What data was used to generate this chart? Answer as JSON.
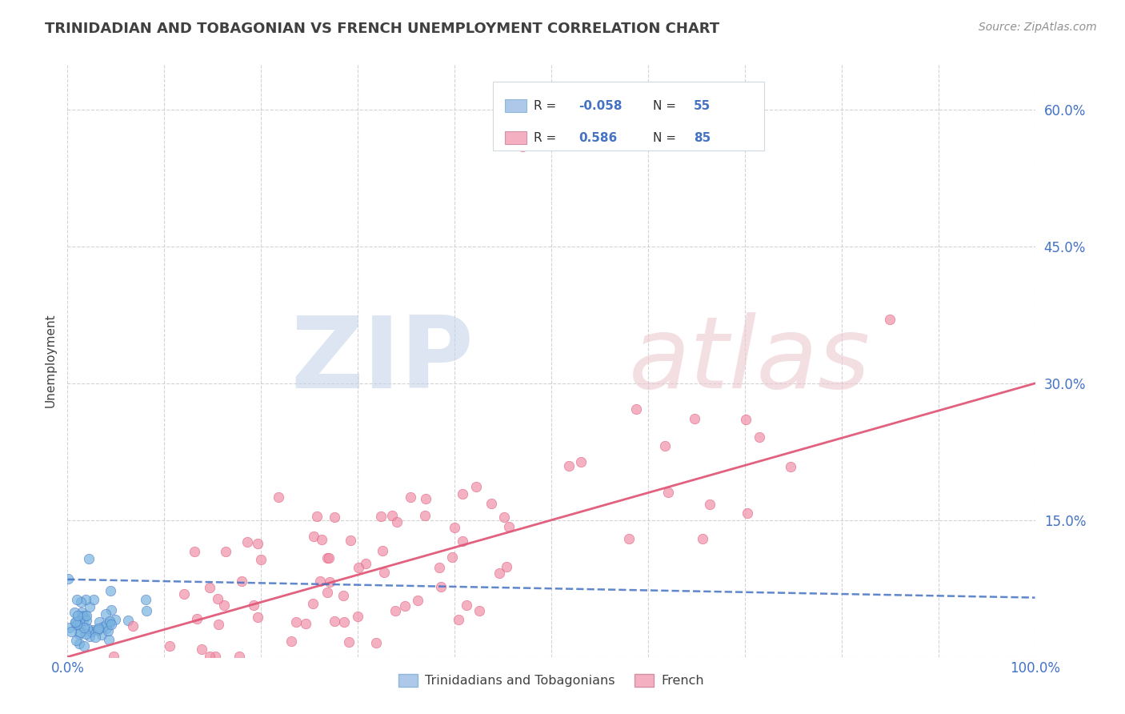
{
  "title": "TRINIDADIAN AND TOBAGONIAN VS FRENCH UNEMPLOYMENT CORRELATION CHART",
  "source": "Source: ZipAtlas.com",
  "ylabel": "Unemployment",
  "xlim": [
    0,
    1
  ],
  "ylim": [
    0,
    0.65
  ],
  "yticks": [
    0.0,
    0.15,
    0.3,
    0.45,
    0.6
  ],
  "ytick_labels": [
    "",
    "15.0%",
    "30.0%",
    "45.0%",
    "60.0%"
  ],
  "xtick_vals": [
    0.0,
    0.1,
    0.2,
    0.3,
    0.4,
    0.5,
    0.6,
    0.7,
    0.8,
    0.9,
    1.0
  ],
  "xtick_labels": [
    "0.0%",
    "",
    "",
    "",
    "",
    "",
    "",
    "",
    "",
    "",
    "100.0%"
  ],
  "blue_R": -0.058,
  "blue_N": 55,
  "pink_R": 0.586,
  "pink_N": 85,
  "blue_legend_color": "#adc8e8",
  "pink_legend_color": "#f4b0c0",
  "blue_line_color": "#4472c4",
  "pink_line_color": "#e05878",
  "blue_scatter_color": "#7ab4e0",
  "pink_scatter_color": "#f090a8",
  "background_color": "#ffffff",
  "grid_color": "#c8c8c8",
  "title_color": "#404040",
  "tick_color": "#4472c4",
  "axis_label_color": "#404040",
  "legend_label_blue": "Trinidadians and Tobagonians",
  "legend_label_pink": "French",
  "blue_seed": 10,
  "pink_seed": 20,
  "pink_line_start_y": 0.0,
  "pink_line_end_y": 0.3,
  "blue_line_start_y": 0.085,
  "blue_line_end_y": 0.065
}
